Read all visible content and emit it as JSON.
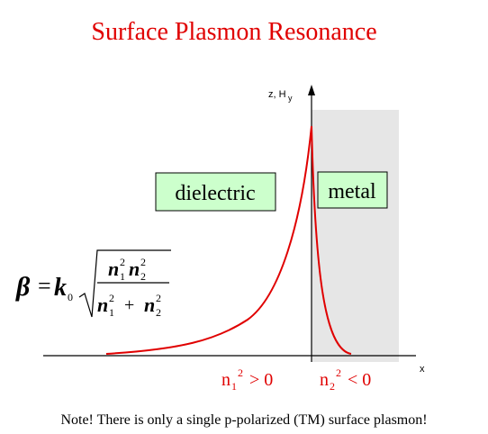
{
  "title": "Surface Plasmon Resonance",
  "axes": {
    "z_label": {
      "text": "z, H",
      "subscript": "y"
    },
    "x_label": "x"
  },
  "regions": {
    "dielectric": "dielectric",
    "metal": "metal"
  },
  "formula": {
    "lhs": "β",
    "equals": "=",
    "k": {
      "base": "k",
      "sub": "0"
    },
    "numerator": [
      {
        "base": "n",
        "sub": "1",
        "sup": "2"
      },
      {
        "base": "n",
        "sub": "2",
        "sup": "2"
      }
    ],
    "denominator": [
      {
        "base": "n",
        "sub": "1",
        "sup": "2"
      },
      {
        "base": "n",
        "sub": "2",
        "sup": "2"
      }
    ],
    "plus": "+"
  },
  "conditions": [
    {
      "base": "n",
      "sub": "1",
      "sup": "2",
      "relation": "> 0"
    },
    {
      "base": "n",
      "sub": "2",
      "sup": "2",
      "relation": "< 0"
    }
  ],
  "note": "Note! There is only a single p-polarized (TM) surface plasmon!"
}
